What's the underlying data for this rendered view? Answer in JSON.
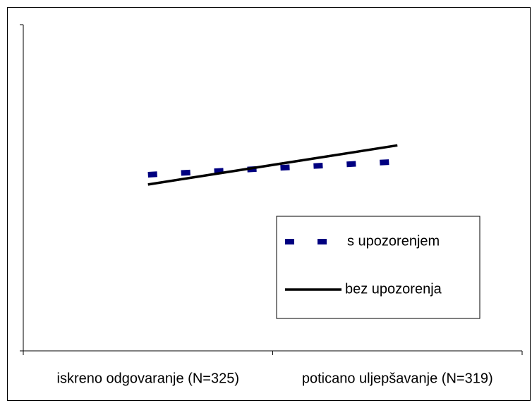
{
  "chart_data": {
    "type": "line",
    "categories": [
      "iskreno odgovaranje (N=325)",
      "poticano uljepšavanje (N=319)"
    ],
    "series": [
      {
        "name": "s upozorenjem",
        "color": "#000080",
        "style": "dashed",
        "values": [
          0.54,
          0.58
        ]
      },
      {
        "name": "bez upozorenja",
        "color": "#000000",
        "style": "solid",
        "values": [
          0.51,
          0.63
        ]
      }
    ],
    "ylim": [
      0,
      1
    ],
    "yticks": [
      0,
      1
    ],
    "grid": false,
    "legend": "lower right"
  }
}
